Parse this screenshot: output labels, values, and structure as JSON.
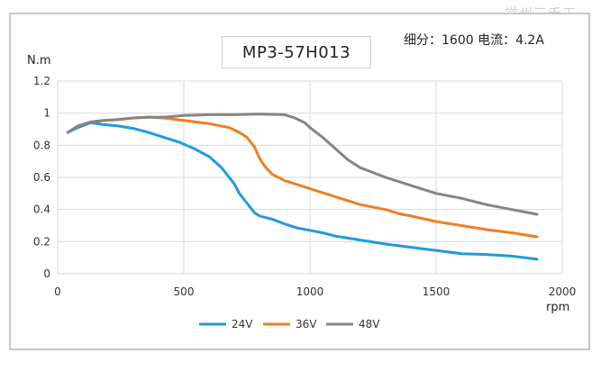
{
  "watermark": "常州三禾工",
  "chart_data": {
    "type": "line",
    "title": "MP3-57H013",
    "subtitle": "细分：1600 电流：4.2A",
    "ylabel": "N.m",
    "xlabel": "rpm",
    "xlim": [
      0,
      2000
    ],
    "ylim": [
      0,
      1.2
    ],
    "x_ticks": [
      "0",
      "500",
      "1000",
      "1500",
      "2000"
    ],
    "y_ticks": [
      "0",
      "0.2",
      "0.4",
      "0.6",
      "0.8",
      "1",
      "1.2"
    ],
    "grid": true,
    "legend_position": "bottom",
    "series": [
      {
        "name": "24V",
        "color": "#1f9bde",
        "x": [
          40,
          80,
          130,
          180,
          240,
          300,
          360,
          420,
          480,
          540,
          600,
          650,
          700,
          720,
          740,
          760,
          780,
          800,
          850,
          900,
          950,
          1000,
          1050,
          1100,
          1200,
          1300,
          1400,
          1500,
          1600,
          1700,
          1800,
          1900
        ],
        "y": [
          0.88,
          0.91,
          0.94,
          0.93,
          0.92,
          0.905,
          0.88,
          0.85,
          0.82,
          0.78,
          0.73,
          0.66,
          0.56,
          0.5,
          0.46,
          0.42,
          0.38,
          0.36,
          0.34,
          0.31,
          0.285,
          0.27,
          0.255,
          0.235,
          0.21,
          0.185,
          0.165,
          0.145,
          0.125,
          0.12,
          0.11,
          0.09
        ]
      },
      {
        "name": "36V",
        "color": "#ee7f1f",
        "x": [
          40,
          80,
          130,
          180,
          240,
          300,
          360,
          420,
          500,
          600,
          680,
          720,
          750,
          780,
          800,
          820,
          850,
          900,
          1000,
          1100,
          1200,
          1300,
          1350,
          1400,
          1500,
          1600,
          1700,
          1800,
          1900
        ],
        "y": [
          0.88,
          0.92,
          0.945,
          0.955,
          0.96,
          0.97,
          0.975,
          0.97,
          0.955,
          0.935,
          0.91,
          0.88,
          0.85,
          0.79,
          0.72,
          0.67,
          0.62,
          0.58,
          0.53,
          0.48,
          0.43,
          0.4,
          0.375,
          0.36,
          0.325,
          0.3,
          0.275,
          0.255,
          0.23
        ]
      },
      {
        "name": "48V",
        "color": "#858585",
        "x": [
          40,
          80,
          130,
          180,
          240,
          300,
          360,
          420,
          500,
          600,
          700,
          800,
          900,
          940,
          980,
          1000,
          1050,
          1100,
          1150,
          1200,
          1250,
          1300,
          1400,
          1500,
          1600,
          1700,
          1800,
          1900
        ],
        "y": [
          0.88,
          0.92,
          0.945,
          0.955,
          0.96,
          0.97,
          0.975,
          0.975,
          0.985,
          0.99,
          0.99,
          0.995,
          0.99,
          0.97,
          0.94,
          0.91,
          0.85,
          0.78,
          0.71,
          0.66,
          0.63,
          0.6,
          0.55,
          0.5,
          0.47,
          0.43,
          0.4,
          0.37
        ]
      }
    ]
  }
}
